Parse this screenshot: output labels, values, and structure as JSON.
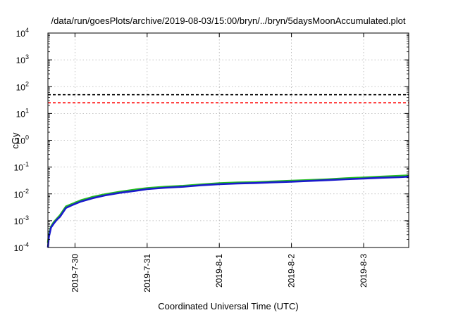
{
  "chart_data": {
    "type": "line",
    "title": "/data/run/goesPlots/archive/2019-08-03/15:00/bryn/../bryn/5daysMoonAccumulated.plot",
    "xlabel": "Coordinated Universal Time (UTC)",
    "ylabel": "cGy",
    "y_scale": "log",
    "ylim": [
      0.0001,
      10000
    ],
    "y_ticks": [
      {
        "value": 0.0001,
        "base": "10",
        "exp": "-4"
      },
      {
        "value": 0.001,
        "base": "10",
        "exp": "-3"
      },
      {
        "value": 0.01,
        "base": "10",
        "exp": "-2"
      },
      {
        "value": 0.1,
        "base": "10",
        "exp": "-1"
      },
      {
        "value": 1,
        "base": "10",
        "exp": "0"
      },
      {
        "value": 10,
        "base": "10",
        "exp": "1"
      },
      {
        "value": 100,
        "base": "10",
        "exp": "2"
      },
      {
        "value": 1000,
        "base": "10",
        "exp": "3"
      },
      {
        "value": 10000,
        "base": "10",
        "exp": "4"
      }
    ],
    "xlim": [
      "2019-07-29T15:00",
      "2019-08-03T15:00"
    ],
    "x_ticks": [
      {
        "value": "2019-07-30T00:00",
        "label": "2019-7-30"
      },
      {
        "value": "2019-07-31T00:00",
        "label": "2019-7-31"
      },
      {
        "value": "2019-08-01T00:00",
        "label": "2019-8-1"
      },
      {
        "value": "2019-08-02T00:00",
        "label": "2019-8-2"
      },
      {
        "value": "2019-08-03T00:00",
        "label": "2019-8-3"
      }
    ],
    "grid": true,
    "threshold_lines": [
      {
        "value": 50,
        "color": "#000000",
        "style": "dashed"
      },
      {
        "value": 25,
        "color": "#ff0000",
        "style": "dashed"
      }
    ],
    "series": [
      {
        "color": "#22bb22",
        "x": [
          "2019-07-29T15:00",
          "2019-07-29T15:20",
          "2019-07-29T16:00",
          "2019-07-29T17:00",
          "2019-07-29T18:00",
          "2019-07-29T19:00",
          "2019-07-29T21:00",
          "2019-07-29T23:00",
          "2019-07-30T02:00",
          "2019-07-30T06:00",
          "2019-07-30T10:00",
          "2019-07-30T15:00",
          "2019-07-30T20:00",
          "2019-07-31T00:00",
          "2019-07-31T06:00",
          "2019-07-31T12:00",
          "2019-07-31T18:00",
          "2019-08-01T00:00",
          "2019-08-01T06:00",
          "2019-08-01T12:00",
          "2019-08-01T18:00",
          "2019-08-02T00:00",
          "2019-08-02T06:00",
          "2019-08-02T12:00",
          "2019-08-02T18:00",
          "2019-08-03T00:00",
          "2019-08-03T06:00",
          "2019-08-03T12:00",
          "2019-08-03T15:00"
        ],
        "values": [
          0.00015,
          0.0003,
          0.0006,
          0.0009,
          0.0012,
          0.0016,
          0.0034,
          0.0042,
          0.0058,
          0.0078,
          0.0097,
          0.012,
          0.0145,
          0.0165,
          0.0185,
          0.02,
          0.0225,
          0.025,
          0.0265,
          0.0275,
          0.029,
          0.031,
          0.033,
          0.035,
          0.038,
          0.041,
          0.044,
          0.047,
          0.049
        ]
      },
      {
        "color": "#1a1acc",
        "x": [
          "2019-07-29T15:00",
          "2019-07-29T15:20",
          "2019-07-29T16:00",
          "2019-07-29T17:00",
          "2019-07-29T18:00",
          "2019-07-29T19:00",
          "2019-07-29T21:00",
          "2019-07-29T23:00",
          "2019-07-30T02:00",
          "2019-07-30T06:00",
          "2019-07-30T10:00",
          "2019-07-30T15:00",
          "2019-07-30T20:00",
          "2019-07-31T00:00",
          "2019-07-31T06:00",
          "2019-07-31T12:00",
          "2019-07-31T18:00",
          "2019-08-01T00:00",
          "2019-08-01T06:00",
          "2019-08-01T12:00",
          "2019-08-01T18:00",
          "2019-08-02T00:00",
          "2019-08-02T06:00",
          "2019-08-02T12:00",
          "2019-08-02T18:00",
          "2019-08-03T00:00",
          "2019-08-03T06:00",
          "2019-08-03T12:00",
          "2019-08-03T15:00"
        ],
        "values": [
          0.0001,
          0.00025,
          0.00055,
          0.0008,
          0.0011,
          0.0014,
          0.003,
          0.0038,
          0.0052,
          0.007,
          0.0088,
          0.011,
          0.013,
          0.015,
          0.017,
          0.0185,
          0.021,
          0.023,
          0.0245,
          0.0255,
          0.027,
          0.0285,
          0.0305,
          0.0325,
          0.035,
          0.0375,
          0.04,
          0.042,
          0.044
        ]
      }
    ]
  }
}
